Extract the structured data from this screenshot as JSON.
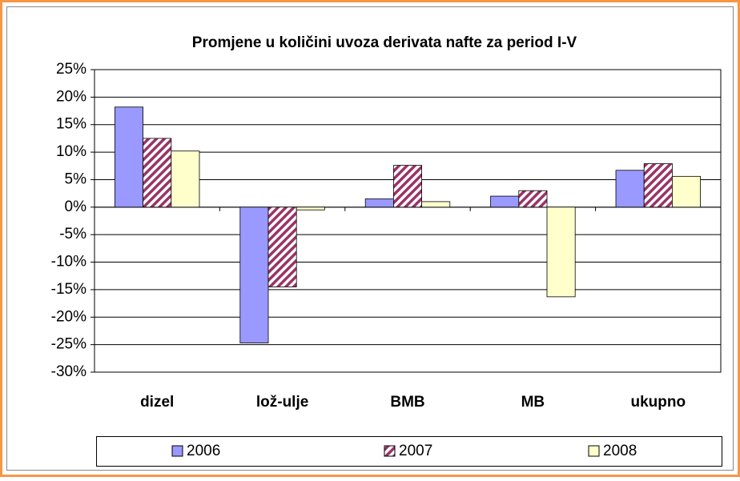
{
  "chart_data": {
    "type": "bar",
    "title": "Promjene u količini uvoza derivata nafte za period I-V",
    "categories": [
      "dizel",
      "lož-ulje",
      "BMB",
      "MB",
      "ukupno"
    ],
    "series": [
      {
        "name": "2006",
        "color": "#9999ff",
        "values": [
          18.2,
          -24.7,
          1.5,
          2.0,
          6.7
        ]
      },
      {
        "name": "2007",
        "color": "#993366",
        "hatch": true,
        "values": [
          12.5,
          -14.5,
          7.6,
          3.0,
          7.9
        ]
      },
      {
        "name": "2008",
        "color": "#ffffcc",
        "values": [
          10.2,
          -0.5,
          1.0,
          -16.3,
          5.6
        ]
      }
    ],
    "ylim": [
      -30,
      25
    ],
    "yticks": [
      {
        "value": -30,
        "label": "-30%"
      },
      {
        "value": -25,
        "label": "-25%"
      },
      {
        "value": -20,
        "label": "-20%"
      },
      {
        "value": -15,
        "label": "-15%"
      },
      {
        "value": -10,
        "label": "-10%"
      },
      {
        "value": -5,
        "label": "-5%"
      },
      {
        "value": 0,
        "label": "0%"
      },
      {
        "value": 5,
        "label": "5%"
      },
      {
        "value": 10,
        "label": "10%"
      },
      {
        "value": 15,
        "label": "15%"
      },
      {
        "value": 20,
        "label": "20%"
      },
      {
        "value": 25,
        "label": "25%"
      }
    ],
    "grid": true
  }
}
